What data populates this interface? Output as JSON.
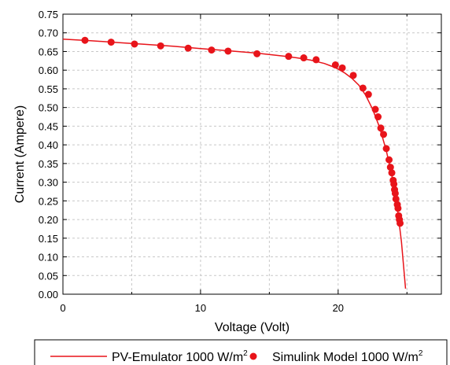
{
  "chart_data": {
    "type": "line",
    "title": "",
    "xlabel": "Voltage (Volt)",
    "ylabel": "Current (Ampere)",
    "xlim": [
      0,
      27.5
    ],
    "ylim": [
      0,
      0.75
    ],
    "x_ticks": [
      0,
      10,
      20
    ],
    "x_tick_labels": [
      "0",
      "10",
      "20"
    ],
    "y_ticks": [
      0,
      0.05,
      0.1,
      0.15,
      0.2,
      0.25,
      0.3,
      0.35,
      0.4,
      0.45,
      0.5,
      0.55,
      0.6,
      0.65,
      0.7,
      0.75
    ],
    "y_tick_labels": [
      "0.00",
      "0.05",
      "0.10",
      "0.15",
      "0.20",
      "0.25",
      "0.30",
      "0.35",
      "0.40",
      "0.45",
      "0.50",
      "0.55",
      "0.60",
      "0.65",
      "0.70",
      "0.75"
    ],
    "grid": true,
    "legend_position": "bottom",
    "series": [
      {
        "name": "PV-Emulator 1000 W/m",
        "name_sup": "2",
        "kind": "line",
        "color": "#e8141a",
        "x": [
          0,
          2,
          4,
          6,
          8,
          10,
          12,
          14,
          16,
          17,
          18,
          19,
          19.5,
          20,
          20.5,
          21,
          21.5,
          22,
          22.5,
          23,
          23.5,
          24,
          24.3,
          24.6,
          24.9
        ],
        "y": [
          0.683,
          0.679,
          0.674,
          0.669,
          0.664,
          0.658,
          0.652,
          0.646,
          0.638,
          0.633,
          0.627,
          0.618,
          0.611,
          0.603,
          0.592,
          0.578,
          0.56,
          0.533,
          0.496,
          0.448,
          0.385,
          0.301,
          0.232,
          0.14,
          0.015
        ]
      },
      {
        "name": "Simulink Model 1000 W/m",
        "name_sup": "2",
        "kind": "scatter",
        "color": "#e8141a",
        "x": [
          1.6,
          3.5,
          5.2,
          7.1,
          9.1,
          10.8,
          12.0,
          14.1,
          16.4,
          17.5,
          18.4,
          19.8,
          20.3,
          21.1,
          21.8,
          22.2,
          22.7,
          22.9,
          23.1,
          23.3,
          23.5,
          23.7,
          23.8,
          23.9,
          24.0,
          24.05,
          24.1,
          24.15,
          24.2,
          24.3,
          24.35,
          24.4,
          24.45,
          24.5
        ],
        "y": [
          0.68,
          0.675,
          0.67,
          0.665,
          0.659,
          0.654,
          0.651,
          0.644,
          0.637,
          0.633,
          0.628,
          0.614,
          0.606,
          0.586,
          0.552,
          0.535,
          0.495,
          0.475,
          0.445,
          0.428,
          0.39,
          0.36,
          0.34,
          0.325,
          0.305,
          0.295,
          0.28,
          0.27,
          0.255,
          0.24,
          0.23,
          0.21,
          0.2,
          0.19
        ]
      }
    ]
  }
}
